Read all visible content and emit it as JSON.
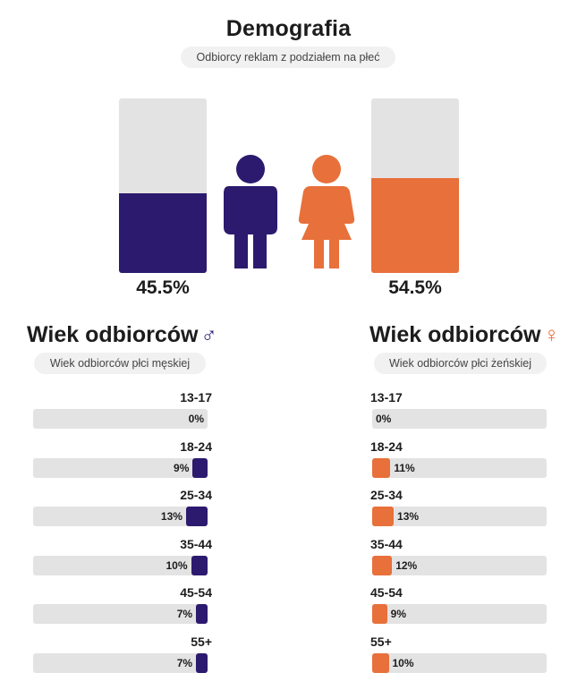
{
  "colors": {
    "male": "#2c1a6e",
    "female": "#e8703a",
    "track": "#e3e3e3"
  },
  "header": {
    "title": "Demografia",
    "subtitle": "Odbiorcy reklam z podziałem na płeć"
  },
  "male_section": {
    "title": "Wiek odbiorców",
    "symbol": "♂",
    "subtitle": "Wiek odbiorców płci męskiej"
  },
  "female_section": {
    "title": "Wiek odbiorców",
    "symbol": "♀",
    "subtitle": "Wiek odbiorców płci żeńskiej"
  },
  "chart_data": [
    {
      "type": "bar",
      "title": "Demografia",
      "subtitle": "Odbiorcy reklam z podziałem na płeć",
      "categories": [
        "Mężczyźni",
        "Kobiety"
      ],
      "values": [
        45.5,
        54.5
      ],
      "value_labels": [
        "45.5%",
        "54.5%"
      ],
      "ylim": [
        0,
        100
      ]
    },
    {
      "type": "bar",
      "title": "Wiek odbiorców ♂",
      "subtitle": "Wiek odbiorców płci męskiej",
      "categories": [
        "13-17",
        "18-24",
        "25-34",
        "35-44",
        "45-54",
        "55+"
      ],
      "values": [
        0,
        9,
        13,
        10,
        7,
        7
      ],
      "value_labels": [
        "0%",
        "9%",
        "13%",
        "10%",
        "7%",
        "7%"
      ],
      "xlim": [
        0,
        100
      ]
    },
    {
      "type": "bar",
      "title": "Wiek odbiorców ♀",
      "subtitle": "Wiek odbiorców płci żeńskiej",
      "categories": [
        "13-17",
        "18-24",
        "25-34",
        "35-44",
        "45-54",
        "55+"
      ],
      "values": [
        0,
        11,
        13,
        12,
        9,
        10
      ],
      "value_labels": [
        "0%",
        "11%",
        "13%",
        "12%",
        "9%",
        "10%"
      ],
      "xlim": [
        0,
        100
      ]
    }
  ]
}
